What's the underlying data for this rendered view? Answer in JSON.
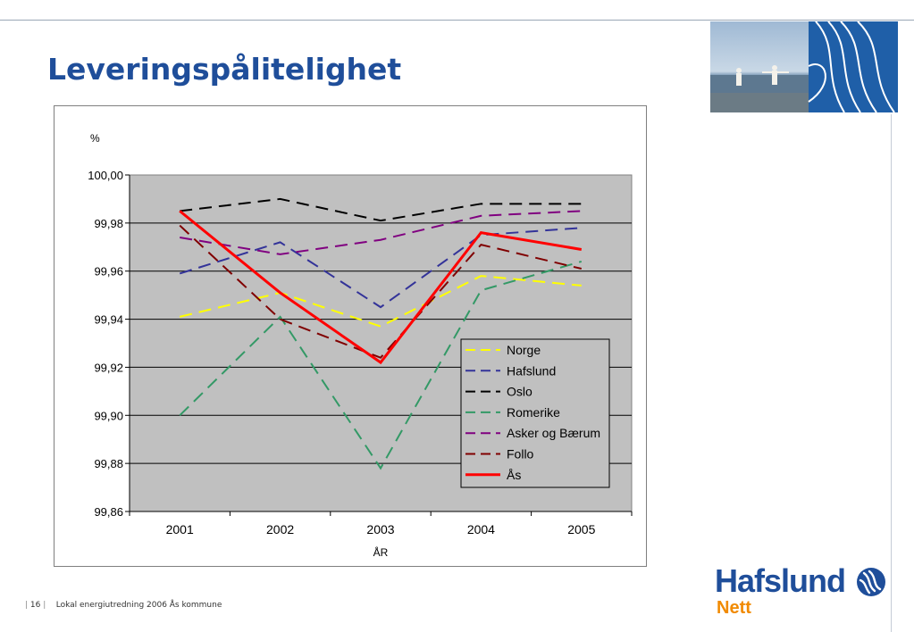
{
  "slide": {
    "title": "Leveringspålitelighet",
    "footer": {
      "page_number": "16",
      "text": "Lokal energiutredning 2006 Ås kommune"
    }
  },
  "logo": {
    "brand": "Hafslund",
    "sub": "Nett",
    "brand_color": "#1f4e9a",
    "sub_color": "#f18a00"
  },
  "chart_data": {
    "type": "line",
    "title": "",
    "xlabel": "ÅR",
    "ylabel": "%",
    "categories": [
      "2001",
      "2002",
      "2003",
      "2004",
      "2005"
    ],
    "ylim": [
      99.86,
      100.0
    ],
    "yticks": [
      "99,86",
      "99,88",
      "99,90",
      "99,92",
      "99,94",
      "99,96",
      "99,98",
      "100,00"
    ],
    "grid": true,
    "legend_position": "bottom-right",
    "plot_background": "#c0c0c0",
    "series": [
      {
        "name": "Norge",
        "color": "#ffff00",
        "dash": "dashed",
        "values": [
          99.941,
          99.951,
          99.937,
          99.958,
          99.954
        ]
      },
      {
        "name": "Hafslund",
        "color": "#333399",
        "dash": "dashed",
        "values": [
          99.959,
          99.972,
          99.945,
          99.975,
          99.978
        ]
      },
      {
        "name": "Oslo",
        "color": "#000000",
        "dash": "dashed",
        "values": [
          99.985,
          99.99,
          99.981,
          99.988,
          99.988
        ]
      },
      {
        "name": "Romerike",
        "color": "#339966",
        "dash": "dashed",
        "values": [
          99.9,
          99.941,
          99.878,
          99.952,
          99.964
        ]
      },
      {
        "name": "Asker og Bærum",
        "color": "#800080",
        "dash": "dashed",
        "values": [
          99.974,
          99.967,
          99.973,
          99.983,
          99.985
        ]
      },
      {
        "name": "Follo",
        "color": "#800000",
        "dash": "dashed",
        "values": [
          99.979,
          99.94,
          99.924,
          99.971,
          99.961
        ]
      },
      {
        "name": "Ås",
        "color": "#ff0000",
        "dash": "solid",
        "values": [
          99.985,
          99.951,
          99.922,
          99.976,
          99.969
        ]
      }
    ]
  }
}
